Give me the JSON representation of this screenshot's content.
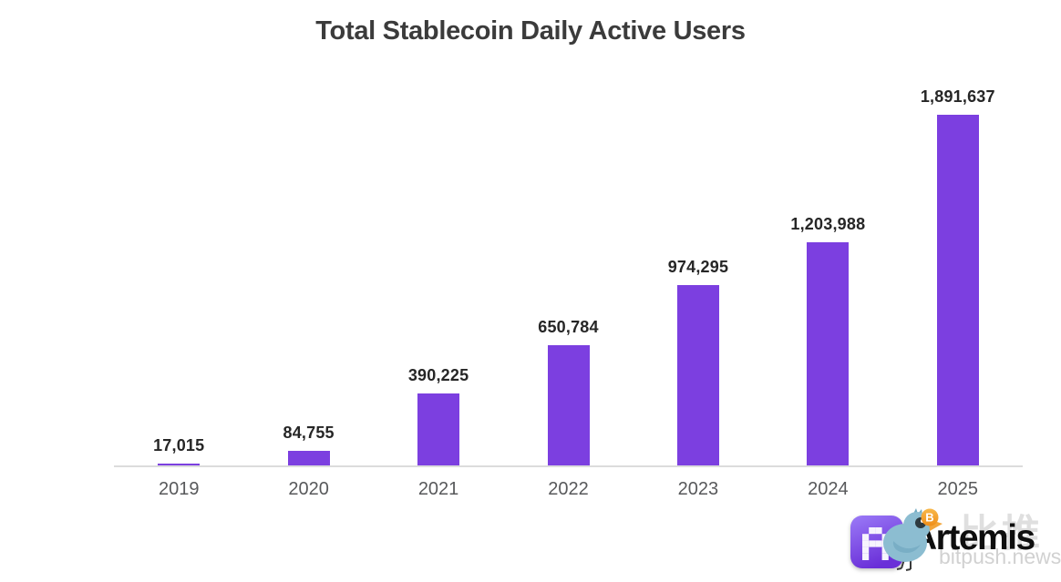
{
  "page": {
    "title": "Total Stablecoin Daily Active Users"
  },
  "chart_data": {
    "type": "bar",
    "title": "Total Stablecoin Daily Active Users",
    "categories": [
      "2019",
      "2020",
      "2021",
      "2022",
      "2023",
      "2024",
      "2025"
    ],
    "values": [
      17015,
      84755,
      390225,
      650784,
      974295,
      1203988,
      1891637
    ],
    "value_labels": [
      "17,015",
      "84,755",
      "390,225",
      "650,784",
      "974,295",
      "1,203,988",
      "1,891,637"
    ],
    "xlabel": "",
    "ylabel": "",
    "ylim": [
      0,
      1891637
    ],
    "grid": false,
    "legend": false,
    "bar_color": "#7C3FE0",
    "layout_hint": "single purple series, data labels above bars, year labels below light-gray baseline, no y-axis"
  },
  "branding": {
    "artemis_label": "Artemis",
    "artemis_icon": "artemis-logo-icon",
    "bird_icon": "bitpush-bird-icon",
    "coin_icon": "bitcoin-icon",
    "coin_letter": "B",
    "watermark_cn": "比推",
    "watermark_domain": "bitpush.news"
  },
  "colors": {
    "bar": "#7C3FE0",
    "title_text": "#3B3B3B",
    "value_text": "#262626",
    "axis_text": "#58595B",
    "baseline": "#DCDCDC",
    "background": "#FFFFFF",
    "watermark": "#C6C6C6",
    "artemis_text": "#0E0E0E",
    "icon_gradient_top": "#9B7BF7",
    "icon_gradient_bottom": "#6A2FD8",
    "bird_body": "#8CBDD1",
    "beak": "#F2A53A",
    "coin": "#F7931A"
  }
}
